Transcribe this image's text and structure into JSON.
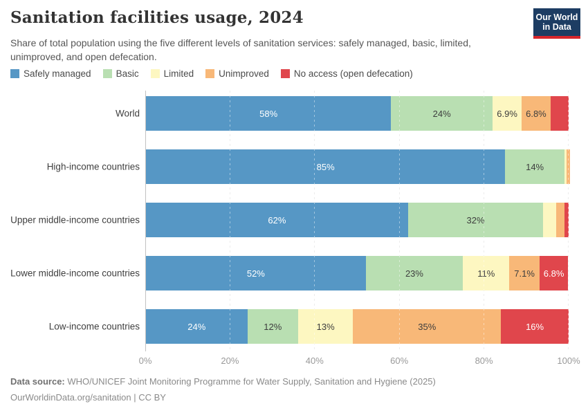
{
  "header": {
    "logo": {
      "line1": "Our World",
      "line2": "in Data",
      "bg_color": "#1d3d63",
      "accent_color": "#d7262c"
    }
  },
  "chart_data": {
    "type": "bar",
    "variant": "horizontal-stacked",
    "title": "Sanitation facilities usage, 2024",
    "subtitle": "Share of total population using the five different levels of sanitation services: safely managed, basic, limited, unimproved, and open defecation.",
    "legend": [
      {
        "key": "safely-managed",
        "label": "Safely managed",
        "color": "#5697c5",
        "label_color": "#ffffff"
      },
      {
        "key": "basic",
        "label": "Basic",
        "color": "#b9dfb2",
        "label_color": "#3d3d3d"
      },
      {
        "key": "limited",
        "label": "Limited",
        "color": "#fdf7c1",
        "label_color": "#3d3d3d"
      },
      {
        "key": "unimproved",
        "label": "Unimproved",
        "color": "#f8b878",
        "label_color": "#3d3d3d"
      },
      {
        "key": "no-access",
        "label": "No access (open defecation)",
        "color": "#e0464c",
        "label_color": "#ffffff"
      }
    ],
    "x_axis": {
      "min": 0,
      "max": 100,
      "ticks": [
        "0%",
        "20%",
        "40%",
        "60%",
        "80%",
        "100%"
      ],
      "grid": true
    },
    "rows": [
      {
        "category": "World",
        "values": [
          58,
          24,
          6.9,
          6.8,
          4.3
        ],
        "labels": [
          "58%",
          "24%",
          "6.9%",
          "6.8%",
          null
        ]
      },
      {
        "category": "High-income countries",
        "values": [
          85,
          14,
          0.5,
          0.8,
          0
        ],
        "labels": [
          "85%",
          "14%",
          null,
          null,
          null
        ]
      },
      {
        "category": "Upper middle-income countries",
        "values": [
          62,
          32,
          3,
          2,
          1
        ],
        "labels": [
          "62%",
          "32%",
          null,
          null,
          null
        ]
      },
      {
        "category": "Lower middle-income countries",
        "values": [
          52,
          23,
          11,
          7.1,
          6.8
        ],
        "labels": [
          "52%",
          "23%",
          "11%",
          "7.1%",
          "6.8%"
        ]
      },
      {
        "category": "Low-income countries",
        "values": [
          24,
          12,
          13,
          35,
          16
        ],
        "labels": [
          "24%",
          "12%",
          "13%",
          "35%",
          "16%"
        ]
      }
    ]
  },
  "footer": {
    "source_label": "Data source:",
    "source_text": " WHO/UNICEF Joint Monitoring Programme for Water Supply, Sanitation and Hygiene (2025)",
    "citation": "OurWorldinData.org/sanitation | CC BY"
  }
}
